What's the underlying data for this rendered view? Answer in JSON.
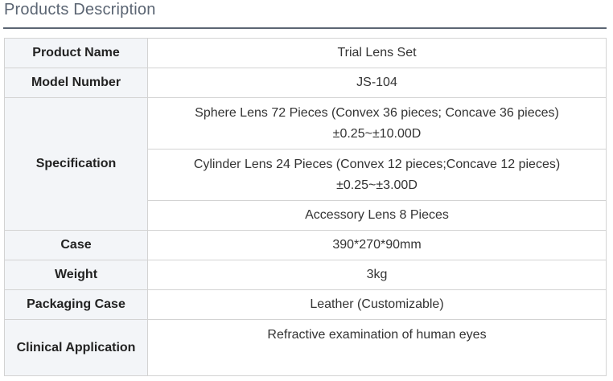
{
  "title": "Products Description",
  "rows": {
    "product_name": {
      "label": "Product Name",
      "value": "Trial Lens Set"
    },
    "model_number": {
      "label": "Model Number",
      "value": "JS-104"
    },
    "specification": {
      "label": "Specification",
      "sphere_line1": "Sphere Lens 72 Pieces  (Convex 36 pieces; Concave 36 pieces)",
      "sphere_line2": "±0.25~±10.00D",
      "cylinder_line1": "Cylinder Lens 24 Pieces  (Convex 12 pieces;Concave 12 pieces)",
      "cylinder_line2": "±0.25~±3.00D",
      "accessory": "Accessory Lens 8 Pieces"
    },
    "case": {
      "label": "Case",
      "value": "390*270*90mm"
    },
    "weight": {
      "label": "Weight",
      "value": "3kg"
    },
    "packaging_case": {
      "label": "Packaging Case",
      "value": "Leather (Customizable)"
    },
    "clinical_application": {
      "label": "Clinical Application",
      "value": "Refractive examination of human eyes"
    }
  }
}
